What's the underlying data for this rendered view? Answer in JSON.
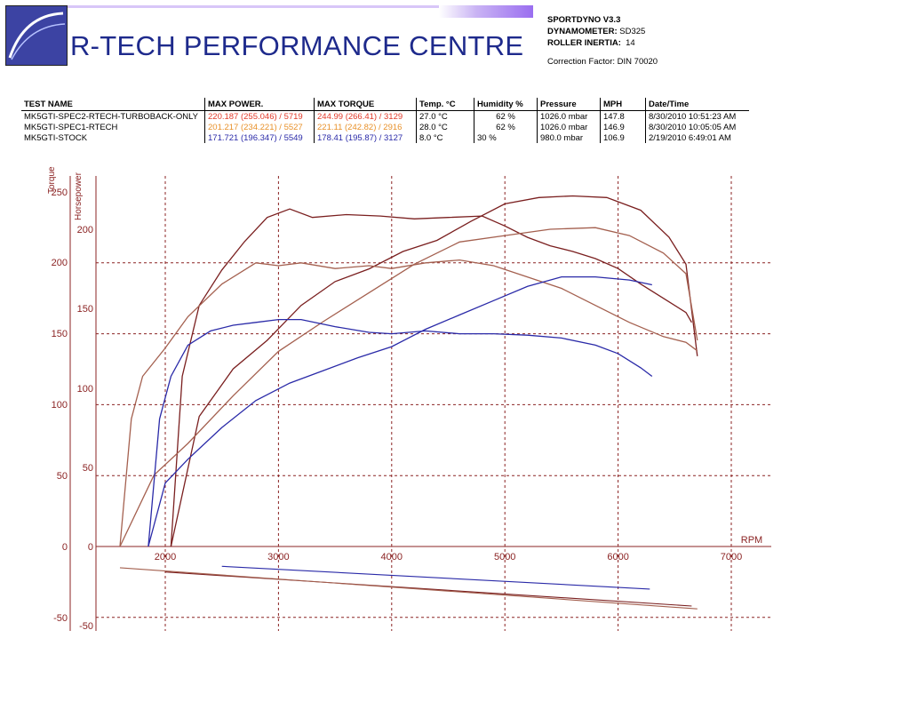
{
  "header": {
    "title": "R-TECH PERFORMANCE CENTRE",
    "software_label": "SPORTDYNO V3.3",
    "dynamometer_label": "DYNAMOMETER:",
    "dynamometer_value": "SD325",
    "roller_label": "ROLLER INERTIA:",
    "roller_value": "14",
    "correction": "Correction Factor: DIN 70020"
  },
  "table": {
    "columns": [
      "TEST NAME",
      "MAX POWER.",
      "MAX TORQUE",
      "Temp. °C",
      "Humidity %",
      "Pressure",
      "MPH",
      "Date/Time"
    ],
    "rows": [
      {
        "name": "MK5GTI-SPEC2-RTECH-TURBOBACK-ONLY",
        "power": "220.187 (255.046) / 5719",
        "torque": "244.99 (266.41) / 3129",
        "temp": "27.0 °C",
        "humidity": "62 %",
        "pressure": "1026.0 mbar",
        "mph": "147.8",
        "date": "8/30/2010 10:51:23 AM",
        "color": "#e23a2a"
      },
      {
        "name": "MK5GTI-SPEC1-RTECH",
        "power": "201.217 (234.221) / 5527",
        "torque": "221.11 (242.82) / 2916",
        "temp": "28.0 °C",
        "humidity": "62 %",
        "pressure": "1026.0 mbar",
        "mph": "146.9",
        "date": "8/30/2010 10:05:05 AM",
        "color": "#e8912a"
      },
      {
        "name": "MK5GTI-STOCK",
        "power": "171.721 (196.347) / 5549",
        "torque": "178.41 (195.87) / 3127",
        "temp": "8.0 °C",
        "humidity": "30 %",
        "pressure": "980.0 mbar",
        "mph": "106.9",
        "date": "2/19/2010 6:49:01 AM",
        "color": "#2a2aa8"
      }
    ]
  },
  "chart_data": {
    "type": "line",
    "ylabel_torque": "Torque",
    "ylabel_hp": "Horsepower",
    "xlabel": "RPM",
    "x_ticks": [
      "2000",
      "3000",
      "4000",
      "5000",
      "6000",
      "7000"
    ],
    "torque_ticks": [
      "250",
      "200",
      "150",
      "100",
      "50",
      "0",
      "-50"
    ],
    "hp_ticks": [
      "200",
      "150",
      "100",
      "50",
      "0",
      "-50"
    ],
    "xlim": [
      1500,
      7300
    ],
    "ylim_torque": [
      -50,
      250
    ],
    "grid": true,
    "series": [
      {
        "color": "#7a1f1f",
        "kind": "torque",
        "x": [
          2050,
          2150,
          2300,
          2500,
          2700,
          2900,
          3100,
          3300,
          3600,
          3900,
          4200,
          4500,
          4800,
          5000,
          5200,
          5400,
          5600,
          5800,
          6000,
          6200,
          6400,
          6600,
          6650
        ],
        "y": [
          0,
          120,
          170,
          195,
          215,
          232,
          238,
          232,
          234,
          233,
          231,
          232,
          233,
          226,
          218,
          212,
          208,
          203,
          196,
          185,
          175,
          165,
          158
        ]
      },
      {
        "color": "#7a1f1f",
        "kind": "power",
        "x": [
          2050,
          2300,
          2600,
          2900,
          3200,
          3500,
          3800,
          4100,
          4400,
          4700,
          5000,
          5300,
          5600,
          5900,
          6200,
          6450,
          6600,
          6700
        ],
        "y": [
          0,
          82,
          112,
          130,
          152,
          167,
          175,
          186,
          193,
          205,
          216,
          220,
          221,
          220,
          212,
          195,
          178,
          120
        ]
      },
      {
        "color": "#a4604f",
        "kind": "torque",
        "x": [
          1600,
          1700,
          1800,
          2000,
          2200,
          2500,
          2800,
          3000,
          3200,
          3500,
          3800,
          4000,
          4300,
          4600,
          4900,
          5200,
          5500,
          5800,
          6100,
          6400,
          6600,
          6700
        ],
        "y": [
          0,
          90,
          120,
          140,
          162,
          185,
          200,
          198,
          200,
          196,
          198,
          196,
          200,
          202,
          198,
          190,
          182,
          170,
          158,
          148,
          144,
          138
        ]
      },
      {
        "color": "#a4604f",
        "kind": "power",
        "x": [
          1600,
          1900,
          2200,
          2600,
          3000,
          3400,
          3800,
          4200,
          4600,
          5000,
          5400,
          5800,
          6100,
          6400,
          6600,
          6700
        ],
        "y": [
          0,
          45,
          65,
          95,
          123,
          142,
          160,
          178,
          192,
          196,
          200,
          201,
          196,
          185,
          172,
          130
        ]
      },
      {
        "color": "#2a2aa8",
        "kind": "torque",
        "x": [
          1850,
          1950,
          2050,
          2200,
          2400,
          2600,
          2800,
          3000,
          3200,
          3500,
          3800,
          4000,
          4300,
          4600,
          4900,
          5200,
          5500,
          5800,
          6000,
          6200,
          6300
        ],
        "y": [
          0,
          90,
          120,
          142,
          152,
          156,
          158,
          160,
          160,
          155,
          151,
          150,
          152,
          150,
          150,
          149,
          147,
          142,
          136,
          126,
          120
        ]
      },
      {
        "color": "#2a2aa8",
        "kind": "power",
        "x": [
          1850,
          2000,
          2200,
          2500,
          2800,
          3100,
          3400,
          3700,
          4000,
          4300,
          4600,
          4900,
          5200,
          5500,
          5800,
          6100,
          6300
        ],
        "y": [
          0,
          40,
          55,
          75,
          92,
          103,
          111,
          119,
          126,
          137,
          146,
          155,
          164,
          170,
          170,
          168,
          165
        ]
      }
    ]
  }
}
